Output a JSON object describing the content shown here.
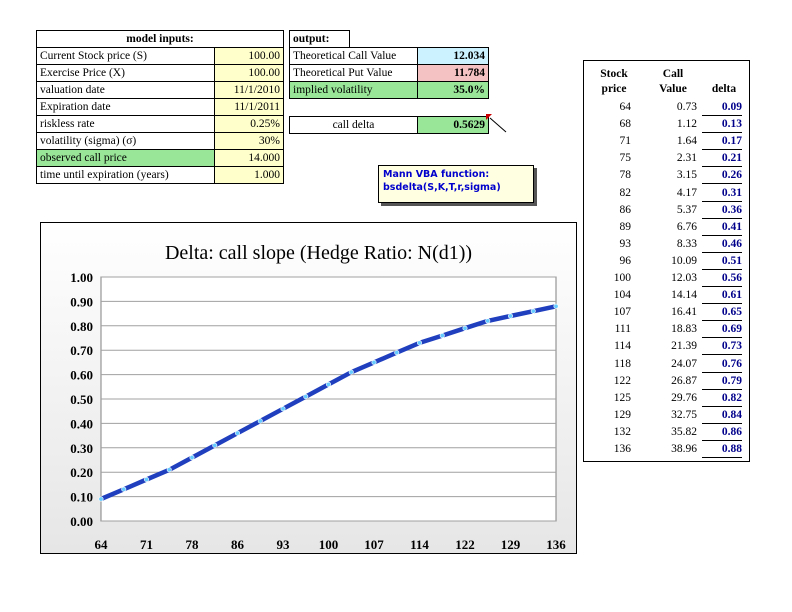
{
  "inputs": {
    "header": "model inputs:",
    "rows": [
      {
        "label": "Current Stock price (S)",
        "value": "100.00",
        "label_bg": "white",
        "value_bg": "yellow"
      },
      {
        "label": "Exercise Price (X)",
        "value": "100.00",
        "label_bg": "white",
        "value_bg": "yellow"
      },
      {
        "label": "valuation date",
        "value": "11/1/2010",
        "label_bg": "white",
        "value_bg": "yellow"
      },
      {
        "label": "Expiration date",
        "value": "11/1/2011",
        "label_bg": "white",
        "value_bg": "yellow"
      },
      {
        "label": "riskless rate",
        "value": "0.25%",
        "label_bg": "white",
        "value_bg": "yellow"
      },
      {
        "label": "volatility (sigma) (σ)",
        "value": "30%",
        "label_bg": "white",
        "value_bg": "yellow"
      },
      {
        "label": "observed call price",
        "value": "14.000",
        "label_bg": "green",
        "value_bg": "yellow"
      },
      {
        "label": "time until expiration (years)",
        "value": "1.000",
        "label_bg": "white",
        "value_bg": "yellow"
      }
    ]
  },
  "output": {
    "header": "output:",
    "rows": [
      {
        "label": "Theoretical Call Value",
        "value": "12.034",
        "label_bg": "white",
        "value_bg": "blue"
      },
      {
        "label": "Theoretical Put Value",
        "value": "11.784",
        "label_bg": "white",
        "value_bg": "pink"
      },
      {
        "label": "implied volatility",
        "value": "35.0%",
        "label_bg": "green",
        "value_bg": "green"
      }
    ],
    "delta_label": "call delta",
    "delta_value": "0.5629"
  },
  "note": {
    "line1": "Mann VBA function:",
    "line2": "bsdelta(S,K,T,r,sigma)"
  },
  "table": {
    "col1_header": [
      "Stock",
      "price"
    ],
    "col2_header": [
      "Call",
      "Value"
    ],
    "col3_header": "delta",
    "rows": [
      {
        "price": "64",
        "value": "0.73",
        "delta": "0.09"
      },
      {
        "price": "68",
        "value": "1.12",
        "delta": "0.13"
      },
      {
        "price": "71",
        "value": "1.64",
        "delta": "0.17"
      },
      {
        "price": "75",
        "value": "2.31",
        "delta": "0.21"
      },
      {
        "price": "78",
        "value": "3.15",
        "delta": "0.26"
      },
      {
        "price": "82",
        "value": "4.17",
        "delta": "0.31"
      },
      {
        "price": "86",
        "value": "5.37",
        "delta": "0.36"
      },
      {
        "price": "89",
        "value": "6.76",
        "delta": "0.41"
      },
      {
        "price": "93",
        "value": "8.33",
        "delta": "0.46"
      },
      {
        "price": "96",
        "value": "10.09",
        "delta": "0.51"
      },
      {
        "price": "100",
        "value": "12.03",
        "delta": "0.56"
      },
      {
        "price": "104",
        "value": "14.14",
        "delta": "0.61"
      },
      {
        "price": "107",
        "value": "16.41",
        "delta": "0.65"
      },
      {
        "price": "111",
        "value": "18.83",
        "delta": "0.69"
      },
      {
        "price": "114",
        "value": "21.39",
        "delta": "0.73"
      },
      {
        "price": "118",
        "value": "24.07",
        "delta": "0.76"
      },
      {
        "price": "122",
        "value": "26.87",
        "delta": "0.79"
      },
      {
        "price": "125",
        "value": "29.76",
        "delta": "0.82"
      },
      {
        "price": "129",
        "value": "32.75",
        "delta": "0.84"
      },
      {
        "price": "132",
        "value": "35.82",
        "delta": "0.86"
      },
      {
        "price": "136",
        "value": "38.96",
        "delta": "0.88"
      }
    ]
  },
  "colors": {
    "yellow": "#ffffcc",
    "green": "#99e699",
    "blue": "#ccf2ff",
    "pink": "#f4c2c2",
    "line": "#1f3fbf",
    "marker": "#66ccff",
    "delta_text": "#00008b"
  },
  "chart_data": {
    "type": "line",
    "title": "Delta: call slope (Hedge Ratio: N(d1))",
    "xlabel": "",
    "ylabel": "",
    "categories": [
      "64",
      "68",
      "71",
      "75",
      "78",
      "82",
      "86",
      "89",
      "93",
      "96",
      "100",
      "104",
      "107",
      "111",
      "114",
      "118",
      "122",
      "125",
      "129",
      "132",
      "136"
    ],
    "x_tick_labels": [
      "64",
      "71",
      "78",
      "86",
      "93",
      "100",
      "107",
      "114",
      "122",
      "129",
      "136"
    ],
    "values": [
      0.09,
      0.13,
      0.17,
      0.21,
      0.26,
      0.31,
      0.36,
      0.41,
      0.46,
      0.51,
      0.56,
      0.61,
      0.65,
      0.69,
      0.73,
      0.76,
      0.79,
      0.82,
      0.84,
      0.86,
      0.88
    ],
    "ylim": [
      0,
      1
    ],
    "y_ticks": [
      "0.00",
      "0.10",
      "0.20",
      "0.30",
      "0.40",
      "0.50",
      "0.60",
      "0.70",
      "0.80",
      "0.90",
      "1.00"
    ],
    "grid": "horizontal",
    "legend": "none"
  }
}
